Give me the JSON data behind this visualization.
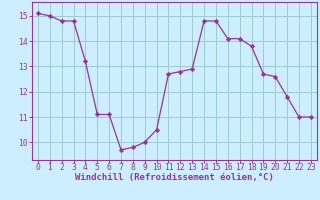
{
  "hours": [
    0,
    1,
    2,
    3,
    4,
    5,
    6,
    7,
    8,
    9,
    10,
    11,
    12,
    13,
    14,
    15,
    16,
    17,
    18,
    19,
    20,
    21,
    22,
    23
  ],
  "values": [
    15.1,
    15.0,
    14.8,
    14.8,
    13.2,
    11.1,
    11.1,
    9.7,
    9.8,
    10.0,
    10.5,
    12.7,
    12.8,
    12.9,
    14.8,
    14.8,
    14.1,
    14.1,
    13.8,
    12.7,
    12.6,
    11.8,
    11.0,
    11.0
  ],
  "line_color": "#993399",
  "marker": "D",
  "marker_size": 2.2,
  "bg_color": "#cceeff",
  "grid_color": "#99cccc",
  "xlabel": "Windchill (Refroidissement éolien,°C)",
  "xlim": [
    -0.5,
    23.5
  ],
  "ylim": [
    9.3,
    15.55
  ],
  "yticks": [
    10,
    11,
    12,
    13,
    14,
    15
  ],
  "xticks": [
    0,
    1,
    2,
    3,
    4,
    5,
    6,
    7,
    8,
    9,
    10,
    11,
    12,
    13,
    14,
    15,
    16,
    17,
    18,
    19,
    20,
    21,
    22,
    23
  ],
  "tick_color": "#993399",
  "label_color": "#993399",
  "xlabel_fontsize": 6.5,
  "tick_fontsize": 5.8,
  "spine_color": "#993399"
}
